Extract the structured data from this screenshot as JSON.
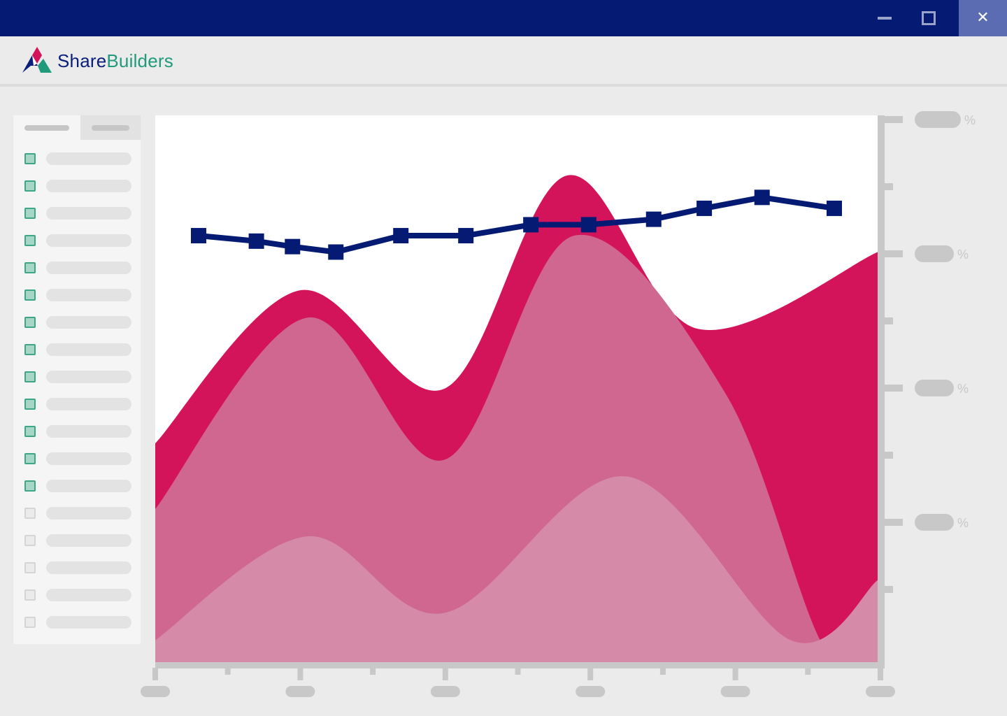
{
  "window": {
    "close_glyph": "✕",
    "buttons": [
      "minimize-icon",
      "maximize-icon",
      "close-icon"
    ]
  },
  "app": {
    "brand_part1": "Share",
    "brand_part2": "Builders",
    "colors": {
      "brand_navy": "#0a1f7a",
      "brand_green": "#1f9a7a",
      "brand_pink": "#d4145a"
    }
  },
  "sidebar": {
    "tabs": [
      {
        "active": true
      },
      {
        "active": false
      }
    ],
    "items": [
      {
        "checked": true
      },
      {
        "checked": true
      },
      {
        "checked": true
      },
      {
        "checked": true
      },
      {
        "checked": true
      },
      {
        "checked": true
      },
      {
        "checked": true
      },
      {
        "checked": true
      },
      {
        "checked": true
      },
      {
        "checked": true
      },
      {
        "checked": true
      },
      {
        "checked": true
      },
      {
        "checked": true
      },
      {
        "checked": false
      },
      {
        "checked": false
      },
      {
        "checked": false
      },
      {
        "checked": false
      },
      {
        "checked": false
      }
    ]
  },
  "chart_data": {
    "type": "area",
    "title": "",
    "xlabel": "",
    "ylabel": "",
    "right_axis_unit": "%",
    "right_axis_label_count": 4,
    "ylim": [
      0,
      100
    ],
    "area_series": [
      {
        "color": "#d4145a",
        "points": [
          [
            0,
            40
          ],
          [
            20,
            68
          ],
          [
            40,
            50
          ],
          [
            57,
            89
          ],
          [
            75,
            61
          ],
          [
            100,
            75
          ]
        ]
      },
      {
        "color": "#d06791",
        "points": [
          [
            0,
            28
          ],
          [
            21,
            63
          ],
          [
            40,
            37
          ],
          [
            58,
            78
          ],
          [
            79,
            49
          ],
          [
            93,
            2
          ],
          [
            100,
            15
          ]
        ]
      },
      {
        "color": "#d58aa8",
        "points": [
          [
            0,
            4
          ],
          [
            21,
            23
          ],
          [
            40,
            9
          ],
          [
            65,
            34
          ],
          [
            88,
            4
          ],
          [
            100,
            15
          ]
        ]
      }
    ],
    "line_series": {
      "color": "#041a73",
      "points": [
        [
          6,
          78
        ],
        [
          14,
          77
        ],
        [
          19,
          76
        ],
        [
          25,
          75
        ],
        [
          34,
          78
        ],
        [
          43,
          78
        ],
        [
          52,
          80
        ],
        [
          60,
          80
        ],
        [
          69,
          81
        ],
        [
          76,
          83
        ],
        [
          84,
          85
        ],
        [
          94,
          83
        ]
      ]
    }
  }
}
